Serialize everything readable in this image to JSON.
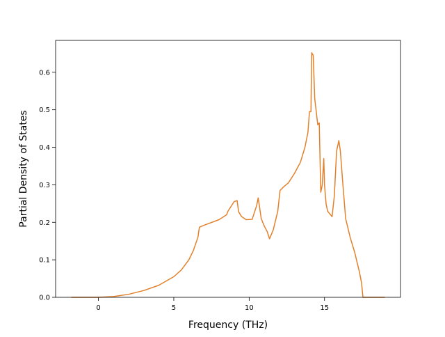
{
  "chart_data": {
    "type": "line",
    "xlabel": "Frequency (THz)",
    "ylabel": "Partial Density of States",
    "x": [
      -1.8,
      0,
      1,
      2,
      3,
      4,
      5,
      5.5,
      6,
      6.3,
      6.6,
      6.7,
      7,
      8,
      8.5,
      8.6,
      9.0,
      9.2,
      9.3,
      9.5,
      9.8,
      10.2,
      10.5,
      10.6,
      10.8,
      11.0,
      11.2,
      11.35,
      11.6,
      11.9,
      12.05,
      12.3,
      12.6,
      13.0,
      13.4,
      13.7,
      13.9,
      14.0,
      14.1,
      14.15,
      14.25,
      14.35,
      14.55,
      14.65,
      14.75,
      14.85,
      14.95,
      15.0,
      15.1,
      15.2,
      15.5,
      15.65,
      15.8,
      15.95,
      16.05,
      16.2,
      16.4,
      16.7,
      17.0,
      17.3,
      17.45,
      17.55,
      19.0
    ],
    "series": [
      {
        "color": "#e3812b",
        "values": [
          0,
          0,
          0.002,
          0.008,
          0.018,
          0.032,
          0.055,
          0.073,
          0.1,
          0.125,
          0.16,
          0.187,
          0.192,
          0.207,
          0.22,
          0.23,
          0.255,
          0.258,
          0.228,
          0.215,
          0.207,
          0.208,
          0.245,
          0.265,
          0.21,
          0.19,
          0.175,
          0.156,
          0.18,
          0.23,
          0.285,
          0.295,
          0.305,
          0.33,
          0.36,
          0.4,
          0.44,
          0.495,
          0.495,
          0.652,
          0.645,
          0.53,
          0.46,
          0.465,
          0.28,
          0.3,
          0.37,
          0.3,
          0.25,
          0.23,
          0.215,
          0.27,
          0.39,
          0.418,
          0.39,
          0.31,
          0.21,
          0.16,
          0.12,
          0.07,
          0.04,
          0,
          0
        ]
      }
    ],
    "xlim": [
      -2.84,
      20.04
    ],
    "ylim": [
      0,
      0.685
    ],
    "xticks": [
      0,
      5,
      10,
      15
    ],
    "yticks": [
      {
        "value": 0,
        "label": "0.0"
      },
      0.1,
      0.2,
      0.3,
      0.4,
      0.5,
      0.6
    ]
  }
}
